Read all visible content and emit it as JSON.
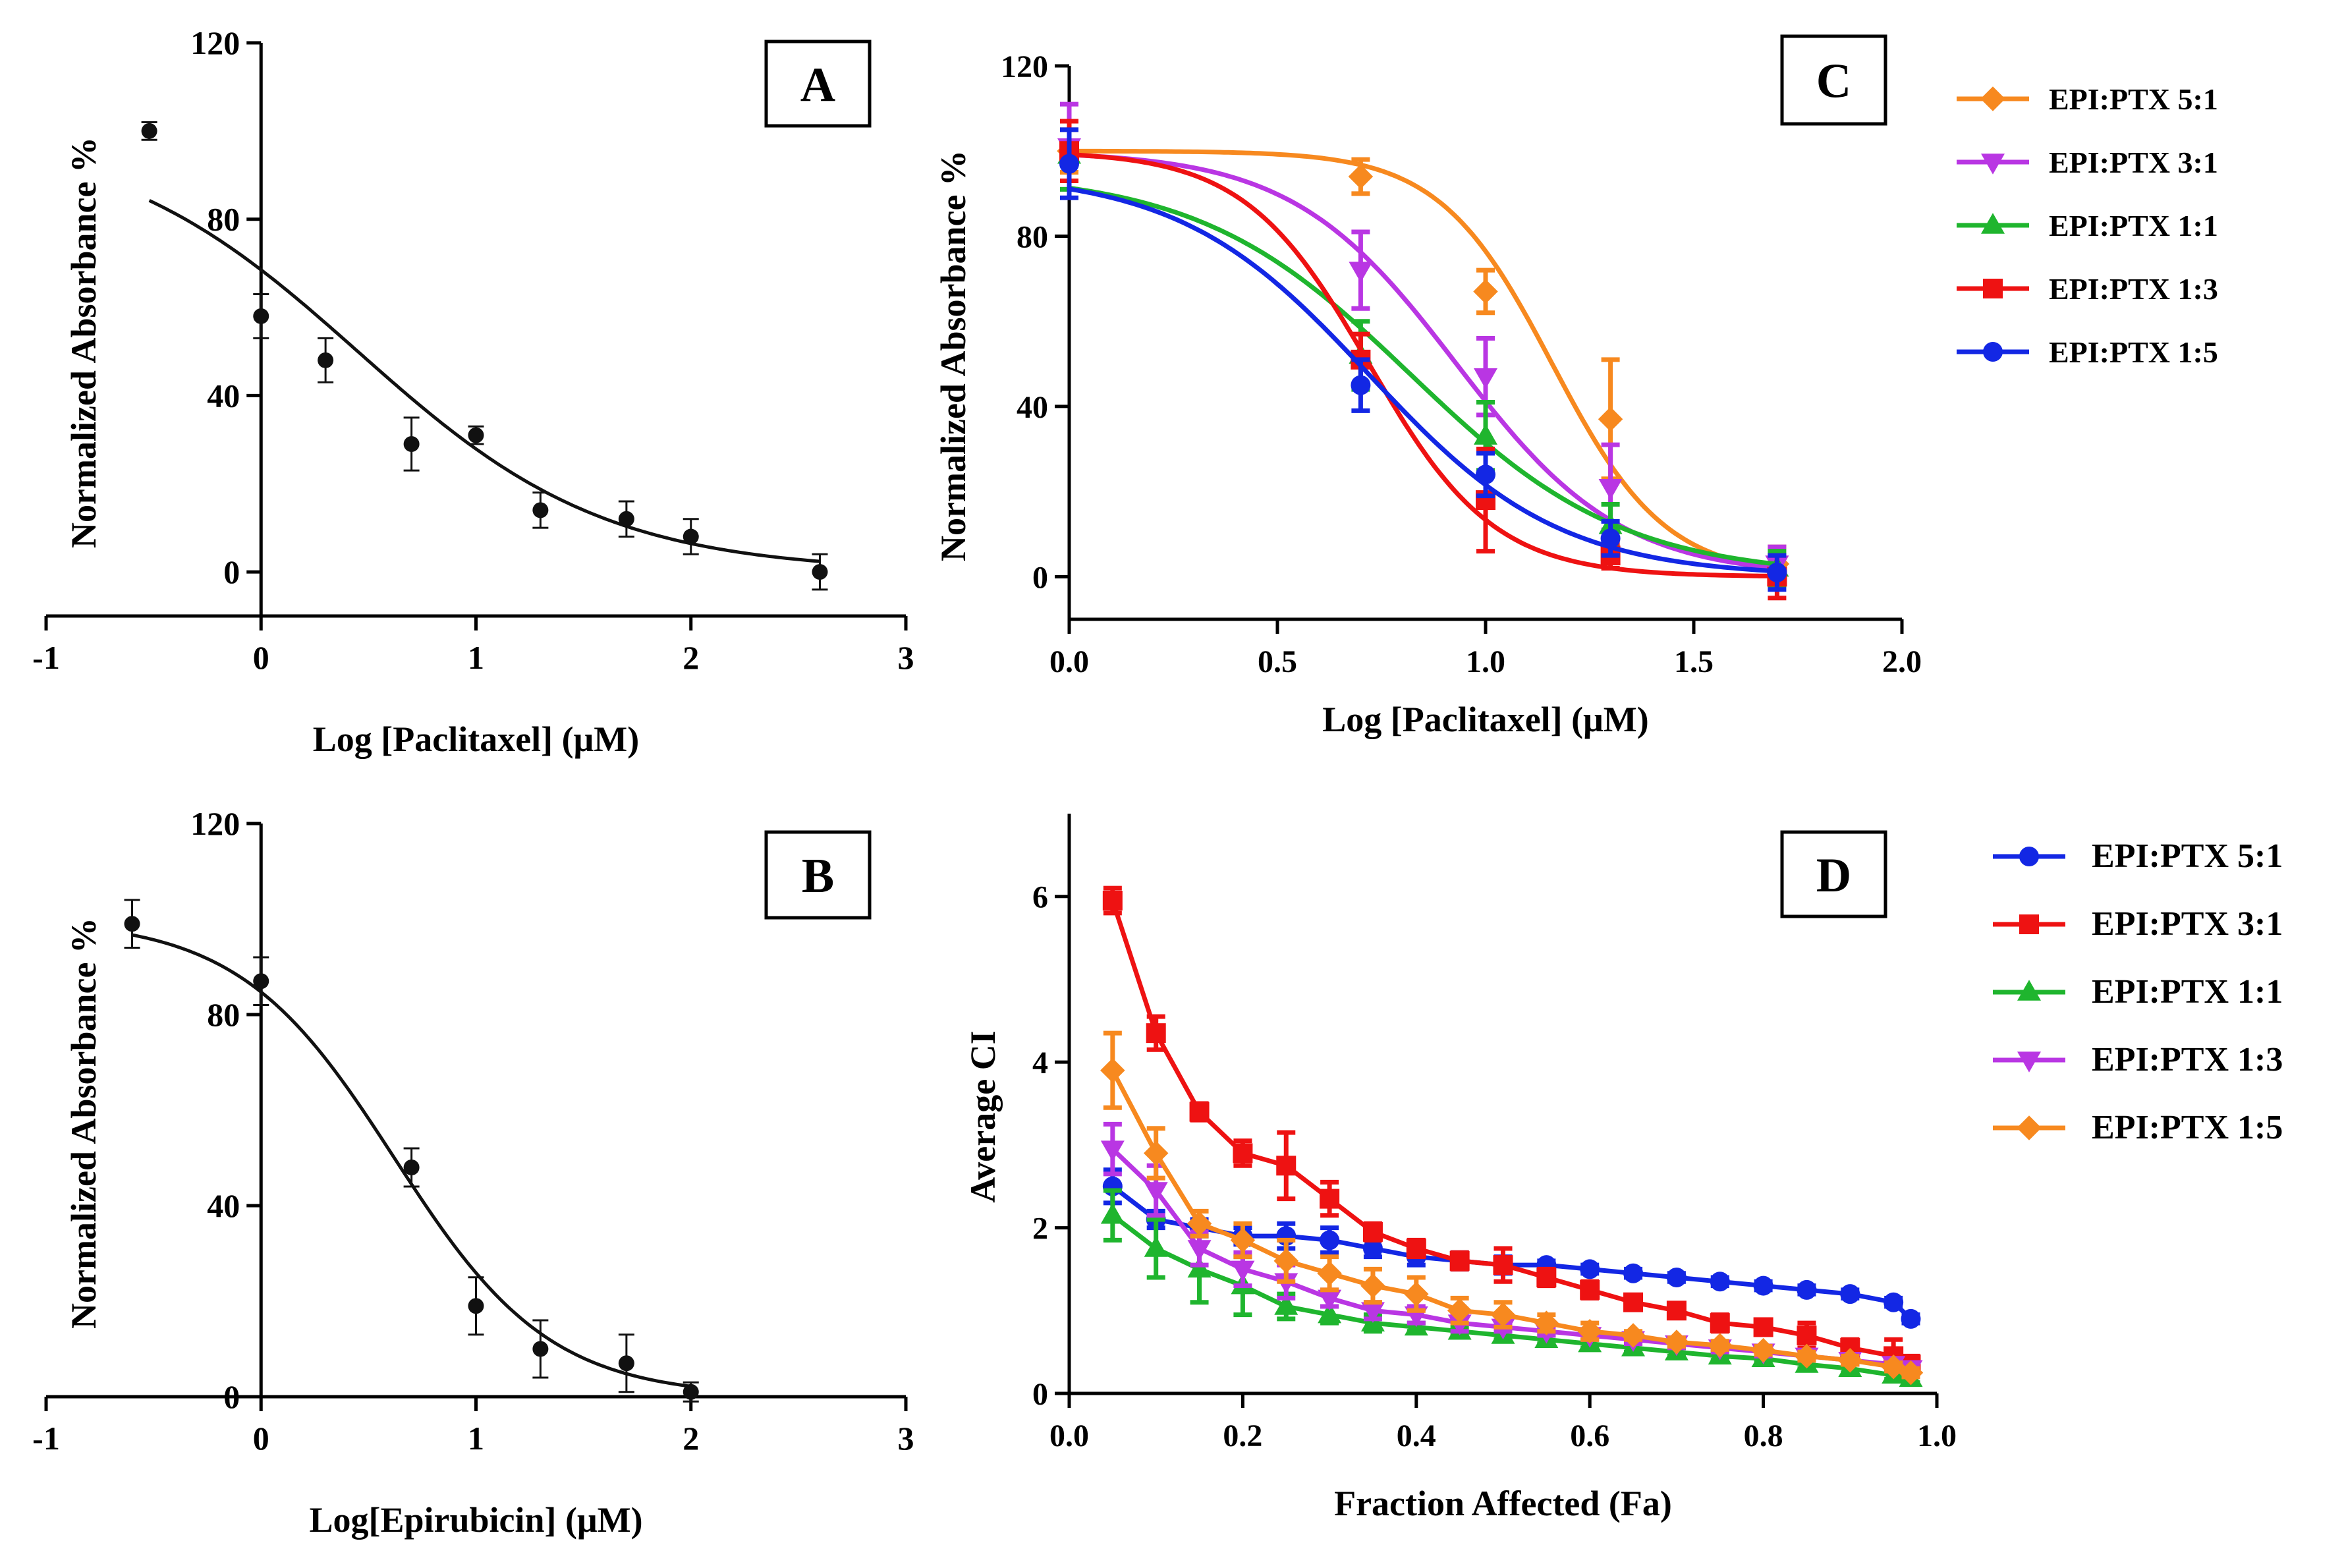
{
  "chart_data": [
    {
      "panel": "A",
      "type": "scatter",
      "title": "",
      "panel_label": "A",
      "xlabel": "Log [Paclitaxel] (μM)",
      "ylabel": "Normalized Absorbance %",
      "xlim": [
        -1,
        3
      ],
      "ylim": [
        -10,
        120
      ],
      "xticks": [
        -1,
        0,
        1,
        2,
        3
      ],
      "xtick_labels": [
        "-1",
        "0",
        "1",
        "2",
        "3"
      ],
      "yticks": [
        0,
        40,
        80,
        120
      ],
      "ytick_labels": [
        "0",
        "40",
        "80",
        "120"
      ],
      "series": [
        {
          "name": "Paclitaxel",
          "color": "#111111",
          "marker": "circle",
          "x": [
            -0.52,
            0,
            0.3,
            0.7,
            1.0,
            1.3,
            1.7,
            2.0,
            2.6
          ],
          "y": [
            100,
            58,
            48,
            29,
            31,
            14,
            12,
            8,
            0
          ],
          "err": [
            2,
            5,
            5,
            6,
            2,
            4,
            4,
            4,
            4
          ],
          "fit": {
            "model": "sigmoid",
            "top": 100,
            "bottom": 0,
            "log_ic50": 0.45,
            "hill": 0.75,
            "x_range": [
              -0.52,
              2.6
            ]
          }
        }
      ]
    },
    {
      "panel": "B",
      "type": "scatter",
      "title": "",
      "panel_label": "B",
      "xlabel": "Log[Epirubicin] (μM)",
      "ylabel": "Normalized Absorbance %",
      "xlim": [
        -1,
        3
      ],
      "ylim": [
        0,
        120
      ],
      "xticks": [
        -1,
        0,
        1,
        2,
        3
      ],
      "xtick_labels": [
        "-1",
        "0",
        "1",
        "2",
        "3"
      ],
      "yticks": [
        0,
        40,
        80,
        120
      ],
      "ytick_labels": [
        "0",
        "40",
        "80",
        "120"
      ],
      "series": [
        {
          "name": "Epirubicin",
          "color": "#111111",
          "marker": "circle",
          "x": [
            -0.6,
            0,
            0.7,
            1.0,
            1.3,
            1.7,
            2.0
          ],
          "y": [
            99,
            87,
            48,
            19,
            10,
            7,
            1
          ],
          "err": [
            5,
            5,
            4,
            6,
            6,
            6,
            2
          ],
          "fit": {
            "model": "sigmoid",
            "top": 100,
            "bottom": 0,
            "log_ic50": 0.62,
            "hill": 1.2,
            "x_range": [
              -0.6,
              2.0
            ]
          }
        }
      ]
    },
    {
      "panel": "C",
      "type": "line",
      "title": "",
      "panel_label": "C",
      "xlabel": "Log [Paclitaxel] (μM)",
      "ylabel": "Normalized Absorbance %",
      "xlim": [
        0,
        2
      ],
      "ylim": [
        -10,
        120
      ],
      "xticks": [
        0,
        0.5,
        1.0,
        1.5,
        2.0
      ],
      "xtick_labels": [
        "0.0",
        "0.5",
        "1.0",
        "1.5",
        "2.0"
      ],
      "yticks": [
        0,
        40,
        80,
        120
      ],
      "ytick_labels": [
        "0",
        "40",
        "80",
        "120"
      ],
      "legend": "right",
      "series": [
        {
          "name": "EPI:PTX 5:1",
          "color": "#f7891f",
          "marker": "diamond",
          "x": [
            0,
            0.7,
            1.0,
            1.3,
            1.7
          ],
          "y": [
            100,
            94,
            67,
            37,
            3
          ],
          "err": [
            5,
            4,
            5,
            14,
            4
          ],
          "fit": {
            "top": 100,
            "bottom": 0,
            "log_ic50": 1.16,
            "hill": 3.2
          }
        },
        {
          "name": "EPI:PTX 3:1",
          "color": "#b936e3",
          "marker": "triangle-down",
          "x": [
            0,
            0.7,
            1.0,
            1.3,
            1.7
          ],
          "y": [
            101,
            72,
            47,
            21,
            3
          ],
          "err": [
            10,
            9,
            9,
            10,
            4
          ],
          "fit": {
            "top": 100,
            "bottom": 0,
            "log_ic50": 0.93,
            "hill": 2.2
          }
        },
        {
          "name": "EPI:PTX 1:1",
          "color": "#1fb52e",
          "marker": "triangle-up",
          "x": [
            0,
            0.7,
            1.0,
            1.3,
            1.7
          ],
          "y": [
            99,
            52,
            33,
            12,
            2
          ],
          "err": [
            8,
            8,
            8,
            5,
            4
          ],
          "fit": {
            "top": 95,
            "bottom": 0,
            "log_ic50": 0.82,
            "hill": 1.7
          }
        },
        {
          "name": "EPI:PTX 1:3",
          "color": "#ee1212",
          "marker": "square",
          "x": [
            0,
            0.7,
            1.0,
            1.3,
            1.7
          ],
          "y": [
            100,
            51,
            18,
            5,
            0
          ],
          "err": [
            7,
            6,
            12,
            3,
            5
          ],
          "fit": {
            "top": 100,
            "bottom": 0,
            "log_ic50": 0.72,
            "hill": 2.9
          }
        },
        {
          "name": "EPI:PTX 1:5",
          "color": "#1327e4",
          "marker": "circle",
          "x": [
            0,
            0.7,
            1.0,
            1.3,
            1.7
          ],
          "y": [
            97,
            45,
            24,
            9,
            1
          ],
          "err": [
            8,
            6,
            5,
            4,
            4
          ],
          "fit": {
            "top": 95,
            "bottom": 0,
            "log_ic50": 0.72,
            "hill": 1.9
          }
        }
      ]
    },
    {
      "panel": "D",
      "type": "line",
      "title": "",
      "panel_label": "D",
      "xlabel": "Fraction Affected (Fa)",
      "ylabel": "Average CI",
      "xlim": [
        0,
        1
      ],
      "ylim": [
        0,
        7
      ],
      "xticks": [
        0,
        0.2,
        0.4,
        0.6,
        0.8,
        1.0
      ],
      "xtick_labels": [
        "0.0",
        "0.2",
        "0.4",
        "0.6",
        "0.8",
        "1.0"
      ],
      "yticks": [
        0,
        2,
        4,
        6
      ],
      "ytick_labels": [
        "0",
        "2",
        "4",
        "6"
      ],
      "legend": "right",
      "x": [
        0.05,
        0.1,
        0.15,
        0.2,
        0.25,
        0.3,
        0.35,
        0.4,
        0.45,
        0.5,
        0.55,
        0.6,
        0.65,
        0.7,
        0.75,
        0.8,
        0.85,
        0.9,
        0.95,
        0.97
      ],
      "series": [
        {
          "name": "EPI:PTX 5:1",
          "color": "#1327e4",
          "marker": "circle",
          "y": [
            2.5,
            2.1,
            2.0,
            1.9,
            1.9,
            1.85,
            1.75,
            1.65,
            1.6,
            1.55,
            1.55,
            1.5,
            1.45,
            1.4,
            1.35,
            1.3,
            1.25,
            1.2,
            1.1,
            0.9
          ],
          "err": [
            0.2,
            0.1,
            0.1,
            0.1,
            0.15,
            0.15,
            0.1,
            0.1,
            0.1,
            0.1,
            0.05,
            0.05,
            0.05,
            0.05,
            0.05,
            0.05,
            0.05,
            0.05,
            0.05,
            0.05
          ]
        },
        {
          "name": "EPI:PTX 3:1",
          "color": "#ee1212",
          "marker": "square",
          "y": [
            5.95,
            4.35,
            3.4,
            2.9,
            2.75,
            2.35,
            1.95,
            1.75,
            1.6,
            1.55,
            1.4,
            1.25,
            1.1,
            1.0,
            0.85,
            0.8,
            0.7,
            0.55,
            0.45,
            0.35
          ],
          "err": [
            0.15,
            0.2,
            0.1,
            0.15,
            0.4,
            0.2,
            0.1,
            0.1,
            0.1,
            0.2,
            0.1,
            0.1,
            0.05,
            0.05,
            0.1,
            0.05,
            0.15,
            0.1,
            0.2,
            0.1
          ]
        },
        {
          "name": "EPI:PTX 1:1",
          "color": "#1fb52e",
          "marker": "triangle-up",
          "y": [
            2.15,
            1.75,
            1.5,
            1.3,
            1.05,
            0.95,
            0.85,
            0.8,
            0.75,
            0.7,
            0.65,
            0.6,
            0.55,
            0.5,
            0.45,
            0.42,
            0.35,
            0.3,
            0.22,
            0.18
          ],
          "err": [
            0.3,
            0.35,
            0.4,
            0.35,
            0.15,
            0.1,
            0.1,
            0.05,
            0.05,
            0.05,
            0.05,
            0.05,
            0.05,
            0.05,
            0.05,
            0.05,
            0.05,
            0.05,
            0.05,
            0.05
          ]
        },
        {
          "name": "EPI:PTX 1:3",
          "color": "#b936e3",
          "marker": "triangle-down",
          "y": [
            2.95,
            2.45,
            1.75,
            1.5,
            1.35,
            1.15,
            1.0,
            0.95,
            0.85,
            0.8,
            0.75,
            0.7,
            0.65,
            0.6,
            0.55,
            0.5,
            0.45,
            0.4,
            0.35,
            0.3
          ],
          "err": [
            0.3,
            0.3,
            0.2,
            0.2,
            0.2,
            0.1,
            0.1,
            0.1,
            0.1,
            0.05,
            0.05,
            0.05,
            0.05,
            0.05,
            0.05,
            0.05,
            0.05,
            0.05,
            0.05,
            0.05
          ]
        },
        {
          "name": "EPI:PTX 1:5",
          "color": "#f7891f",
          "marker": "diamond",
          "y": [
            3.9,
            2.9,
            2.05,
            1.85,
            1.6,
            1.45,
            1.3,
            1.2,
            1.0,
            0.95,
            0.85,
            0.75,
            0.7,
            0.62,
            0.58,
            0.52,
            0.45,
            0.4,
            0.32,
            0.25
          ],
          "err": [
            0.45,
            0.3,
            0.15,
            0.2,
            0.25,
            0.2,
            0.2,
            0.2,
            0.15,
            0.15,
            0.1,
            0.1,
            0.05,
            0.05,
            0.05,
            0.05,
            0.05,
            0.05,
            0.05,
            0.05
          ]
        }
      ]
    }
  ]
}
